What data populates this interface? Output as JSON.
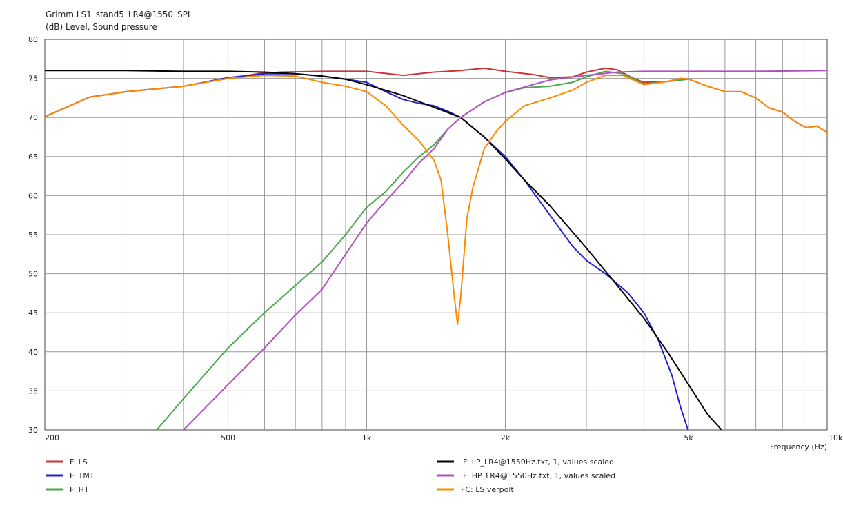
{
  "chart_data": {
    "type": "line",
    "title": "Grimm LS1_stand5_LR4@1550_SPL",
    "ylabel": "(dB)  Level, Sound pressure",
    "xlabel": "Frequency  (Hz)",
    "x_scale": "log",
    "xlim": [
      200,
      10000
    ],
    "ylim": [
      30,
      80
    ],
    "grid": true,
    "legend_position": "bottom",
    "x_tick_labels": [
      {
        "value": 200,
        "label": "200"
      },
      {
        "value": 500,
        "label": "500"
      },
      {
        "value": 1000,
        "label": "1k"
      },
      {
        "value": 2000,
        "label": "2k"
      },
      {
        "value": 5000,
        "label": "5k"
      },
      {
        "value": 10000,
        "label": "10k"
      }
    ],
    "y_ticks": [
      30,
      35,
      40,
      45,
      50,
      55,
      60,
      65,
      70,
      75,
      80
    ],
    "series": [
      {
        "name": "F: LS",
        "color": "#cc3333",
        "points": [
          [
            200,
            70.1
          ],
          [
            250,
            72.6
          ],
          [
            300,
            73.3
          ],
          [
            400,
            74.0
          ],
          [
            500,
            75.0
          ],
          [
            580,
            75.6
          ],
          [
            650,
            75.8
          ],
          [
            800,
            75.9
          ],
          [
            1000,
            75.9
          ],
          [
            1200,
            75.4
          ],
          [
            1400,
            75.8
          ],
          [
            1600,
            76.0
          ],
          [
            1800,
            76.3
          ],
          [
            2000,
            75.9
          ],
          [
            2300,
            75.5
          ],
          [
            2500,
            75.1
          ],
          [
            2800,
            75.2
          ],
          [
            3000,
            75.8
          ],
          [
            3300,
            76.3
          ],
          [
            3500,
            76.1
          ],
          [
            3800,
            75.0
          ],
          [
            4000,
            74.5
          ],
          [
            4500,
            74.6
          ],
          [
            4800,
            75.0
          ],
          [
            5000,
            74.9
          ],
          [
            5500,
            74.0
          ],
          [
            6000,
            73.3
          ],
          [
            6500,
            73.3
          ],
          [
            7000,
            72.5
          ],
          [
            7500,
            71.2
          ],
          [
            8000,
            70.7
          ],
          [
            8500,
            69.5
          ],
          [
            9000,
            68.7
          ],
          [
            9500,
            68.9
          ],
          [
            10000,
            68.1
          ]
        ]
      },
      {
        "name": "F: TMT",
        "color": "#2222cc",
        "points": [
          [
            200,
            70.1
          ],
          [
            250,
            72.6
          ],
          [
            300,
            73.3
          ],
          [
            400,
            74.0
          ],
          [
            500,
            75.1
          ],
          [
            600,
            75.6
          ],
          [
            700,
            75.6
          ],
          [
            800,
            75.3
          ],
          [
            900,
            74.9
          ],
          [
            1000,
            74.5
          ],
          [
            1100,
            73.3
          ],
          [
            1200,
            72.3
          ],
          [
            1300,
            71.8
          ],
          [
            1400,
            71.5
          ],
          [
            1500,
            70.8
          ],
          [
            1600,
            70.0
          ],
          [
            1800,
            67.5
          ],
          [
            2000,
            65.0
          ],
          [
            2200,
            62.0
          ],
          [
            2500,
            57.5
          ],
          [
            2800,
            53.5
          ],
          [
            3000,
            51.7
          ],
          [
            3300,
            50.0
          ],
          [
            3700,
            47.5
          ],
          [
            4000,
            45.0
          ],
          [
            4300,
            41.5
          ],
          [
            4600,
            37.0
          ],
          [
            4800,
            33.0
          ],
          [
            5000,
            29.8
          ]
        ]
      },
      {
        "name": "F: HT",
        "color": "#4ca64c",
        "points": [
          [
            350,
            30.0
          ],
          [
            400,
            34.0
          ],
          [
            500,
            40.5
          ],
          [
            600,
            45.0
          ],
          [
            700,
            48.5
          ],
          [
            800,
            51.5
          ],
          [
            900,
            55.0
          ],
          [
            1000,
            58.5
          ],
          [
            1100,
            60.5
          ],
          [
            1200,
            63.0
          ],
          [
            1300,
            65.0
          ],
          [
            1400,
            66.5
          ],
          [
            1500,
            68.5
          ],
          [
            1600,
            70.0
          ],
          [
            1800,
            72.0
          ],
          [
            2000,
            73.2
          ],
          [
            2200,
            73.8
          ],
          [
            2500,
            74.0
          ],
          [
            2800,
            74.5
          ],
          [
            3000,
            75.2
          ],
          [
            3300,
            75.9
          ],
          [
            3600,
            75.6
          ],
          [
            4000,
            74.3
          ],
          [
            4500,
            74.6
          ],
          [
            5000,
            74.9
          ]
        ]
      },
      {
        "name": "iF: LP_LR4@1550Hz.txt, 1, values scaled",
        "color": "#000000",
        "points": [
          [
            200,
            76.0
          ],
          [
            300,
            76.0
          ],
          [
            400,
            75.9
          ],
          [
            500,
            75.9
          ],
          [
            600,
            75.8
          ],
          [
            700,
            75.6
          ],
          [
            800,
            75.3
          ],
          [
            900,
            74.9
          ],
          [
            1000,
            74.2
          ],
          [
            1200,
            72.8
          ],
          [
            1400,
            71.3
          ],
          [
            1600,
            70.0
          ],
          [
            1800,
            67.5
          ],
          [
            2000,
            64.7
          ],
          [
            2200,
            62.0
          ],
          [
            2500,
            58.7
          ],
          [
            3000,
            53.3
          ],
          [
            3500,
            48.5
          ],
          [
            4000,
            44.3
          ],
          [
            4500,
            40.0
          ],
          [
            5000,
            35.8
          ],
          [
            5500,
            32.0
          ],
          [
            5900,
            30.0
          ]
        ]
      },
      {
        "name": "iF: HP_LR4@1550Hz.txt, 1, values scaled",
        "color": "#b050c0",
        "points": [
          [
            400,
            30.0
          ],
          [
            500,
            35.8
          ],
          [
            600,
            40.5
          ],
          [
            700,
            44.7
          ],
          [
            800,
            48.0
          ],
          [
            900,
            52.5
          ],
          [
            1000,
            56.5
          ],
          [
            1100,
            59.3
          ],
          [
            1200,
            61.7
          ],
          [
            1300,
            64.2
          ],
          [
            1400,
            66.0
          ],
          [
            1500,
            68.5
          ],
          [
            1600,
            70.0
          ],
          [
            1800,
            72.0
          ],
          [
            2000,
            73.2
          ],
          [
            2200,
            73.9
          ],
          [
            2500,
            74.8
          ],
          [
            3000,
            75.4
          ],
          [
            3500,
            75.8
          ],
          [
            4000,
            75.9
          ],
          [
            5000,
            75.9
          ],
          [
            7000,
            75.9
          ],
          [
            10000,
            76.0
          ]
        ]
      },
      {
        "name": "FC: LS verpolt",
        "color": "#ff8800",
        "points": [
          [
            200,
            70.1
          ],
          [
            250,
            72.6
          ],
          [
            300,
            73.3
          ],
          [
            400,
            74.0
          ],
          [
            500,
            75.0
          ],
          [
            600,
            75.4
          ],
          [
            700,
            75.3
          ],
          [
            800,
            74.5
          ],
          [
            900,
            74.0
          ],
          [
            1000,
            73.3
          ],
          [
            1100,
            71.5
          ],
          [
            1200,
            69.0
          ],
          [
            1300,
            67.0
          ],
          [
            1400,
            64.5
          ],
          [
            1450,
            62.0
          ],
          [
            1500,
            55.0
          ],
          [
            1550,
            47.0
          ],
          [
            1575,
            43.5
          ],
          [
            1600,
            47.0
          ],
          [
            1650,
            57.0
          ],
          [
            1700,
            61.0
          ],
          [
            1800,
            66.0
          ],
          [
            1900,
            68.0
          ],
          [
            2000,
            69.5
          ],
          [
            2200,
            71.5
          ],
          [
            2500,
            72.5
          ],
          [
            2800,
            73.5
          ],
          [
            3000,
            74.5
          ],
          [
            3300,
            75.4
          ],
          [
            3600,
            75.4
          ],
          [
            4000,
            74.2
          ],
          [
            4500,
            74.6
          ],
          [
            4800,
            75.0
          ],
          [
            5000,
            74.9
          ],
          [
            5500,
            74.0
          ],
          [
            6000,
            73.3
          ],
          [
            6500,
            73.3
          ],
          [
            7000,
            72.5
          ],
          [
            7500,
            71.2
          ],
          [
            8000,
            70.7
          ],
          [
            8500,
            69.5
          ],
          [
            9000,
            68.7
          ],
          [
            9500,
            68.9
          ],
          [
            10000,
            68.1
          ]
        ]
      }
    ]
  }
}
